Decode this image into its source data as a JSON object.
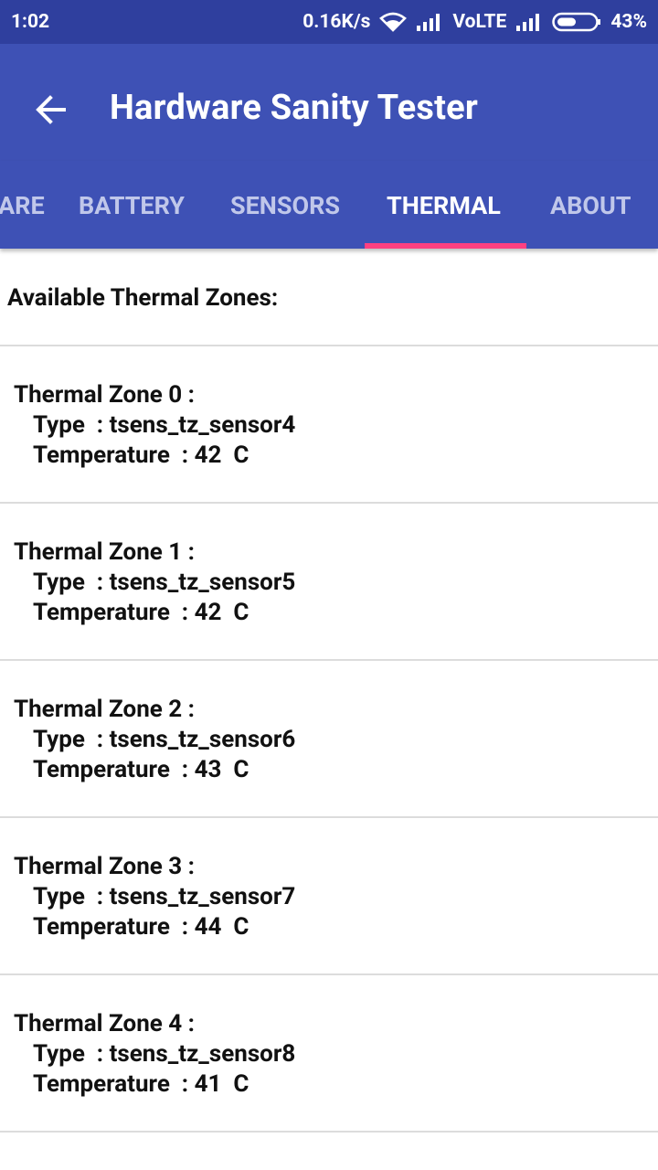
{
  "status_bar": {
    "time": "1:02",
    "speed": "0.16K/s",
    "network": "VoLTE",
    "battery": "43%"
  },
  "app_bar": {
    "title": "Hardware Sanity Tester"
  },
  "tabs": [
    {
      "label": "ARE",
      "active": false
    },
    {
      "label": "BATTERY",
      "active": false
    },
    {
      "label": "SENSORS",
      "active": false
    },
    {
      "label": "THERMAL",
      "active": true
    },
    {
      "label": "ABOUT",
      "active": false
    }
  ],
  "colors": {
    "status_bar": "#2f3f9e",
    "primary": "#3e51b5",
    "accent": "#ff4081"
  },
  "content": {
    "heading": "Available Thermal Zones:",
    "zones": [
      {
        "title": "Thermal Zone 0 :",
        "type": "Type  : tsens_tz_sensor4",
        "temp": "Temperature  : 42  C"
      },
      {
        "title": "Thermal Zone 1 :",
        "type": "Type  : tsens_tz_sensor5",
        "temp": "Temperature  : 42  C"
      },
      {
        "title": "Thermal Zone 2 :",
        "type": "Type  : tsens_tz_sensor6",
        "temp": "Temperature  : 43  C"
      },
      {
        "title": "Thermal Zone 3 :",
        "type": "Type  : tsens_tz_sensor7",
        "temp": "Temperature  : 44  C"
      },
      {
        "title": "Thermal Zone 4 :",
        "type": "Type  : tsens_tz_sensor8",
        "temp": "Temperature  : 41  C"
      }
    ]
  }
}
